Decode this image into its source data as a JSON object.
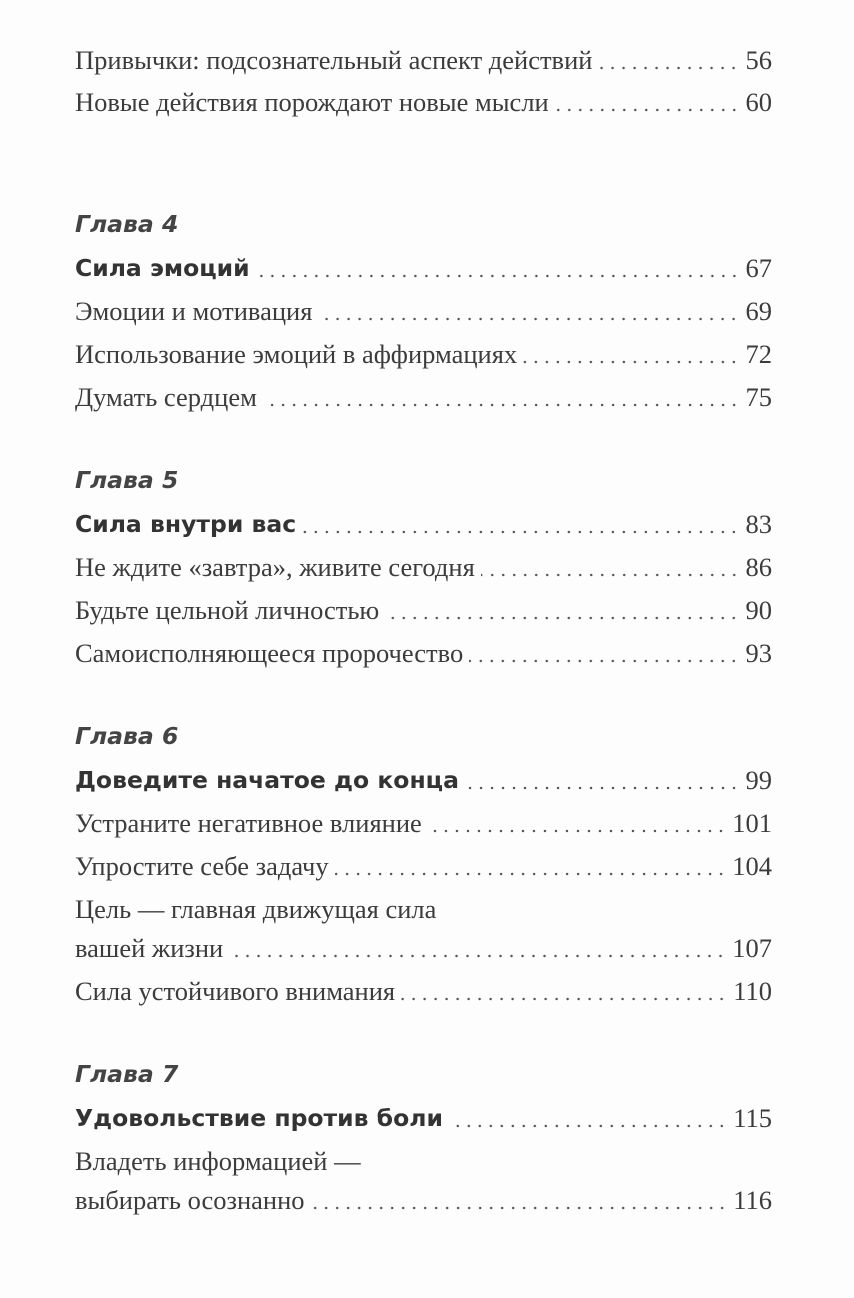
{
  "top_entries": [
    {
      "title": "Привычки: подсознательный аспект действий",
      "page": "56"
    },
    {
      "title": "Новые действия порождают новые мысли",
      "page": "60"
    }
  ],
  "chapters": [
    {
      "label": "Глава 4",
      "title": "Сила эмоций",
      "page": "67",
      "entries": [
        {
          "title": "Эмоции и мотивация",
          "page": "69"
        },
        {
          "title": "Использование эмоций в аффирмациях",
          "page": "72"
        },
        {
          "title": "Думать сердцем",
          "page": "75"
        }
      ]
    },
    {
      "label": "Глава 5",
      "title": "Сила внутри вас",
      "page": "83",
      "entries": [
        {
          "title": "Не ждите «завтра», живите сегодня",
          "page": "86"
        },
        {
          "title": "Будьте цельной личностью",
          "page": "90"
        },
        {
          "title": "Самоисполняющееся пророчество",
          "page": "93"
        }
      ]
    },
    {
      "label": "Глава 6",
      "title": "Доведите начатое до конца",
      "page": "99",
      "entries": [
        {
          "title": "Устраните негативное влияние",
          "page": "101"
        },
        {
          "title": "Упростите себе задачу",
          "page": "104"
        },
        {
          "title_line1": "Цель — главная движущая сила",
          "title": "вашей жизни",
          "page": "107"
        },
        {
          "title": "Сила устойчивого внимания",
          "page": "110"
        }
      ]
    },
    {
      "label": "Глава 7",
      "title": "Удовольствие против боли",
      "page": "115",
      "entries": [
        {
          "title_line1": "Владеть информацией —",
          "title": "выбирать осознанно",
          "page": "116"
        }
      ]
    }
  ]
}
